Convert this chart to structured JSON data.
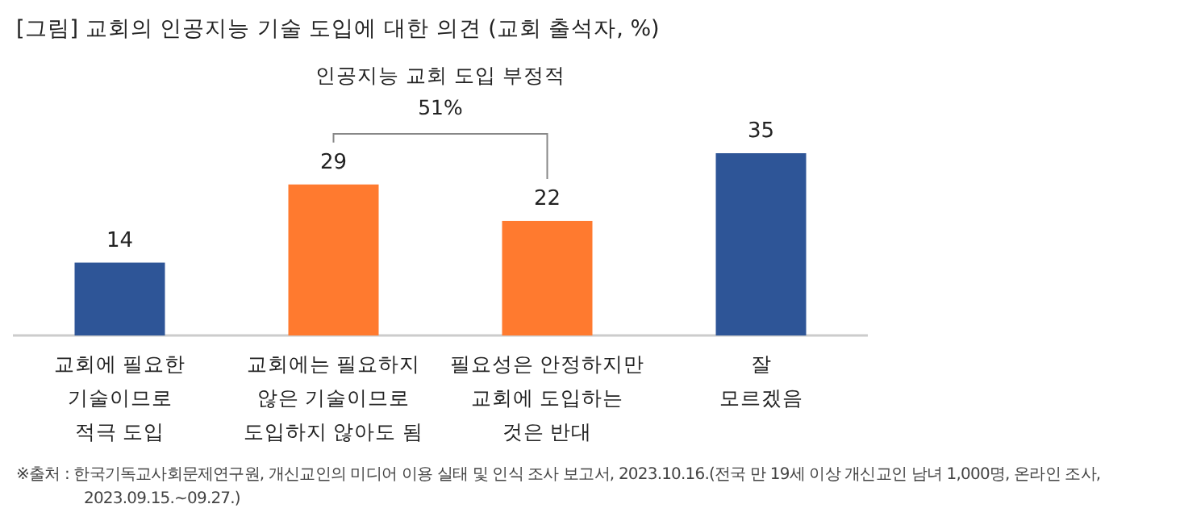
{
  "chart_data": {
    "type": "bar",
    "title": "[그림] 교회의 인공지능 기술 도입에 대한 의견 (교회 출석자, %)",
    "categories": [
      "교회에 필요한\n기술이므로\n적극 도입",
      "교회에는 필요하지\n않은 기술이므로\n도입하지 않아도 됨",
      "필요성은 안정하지만\n교회에 도입하는\n것은 반대",
      "잘\n모르겠음"
    ],
    "values": [
      14,
      29,
      22,
      35
    ],
    "colors": [
      "#2e5597",
      "#ff7a2f",
      "#ff7a2f",
      "#2e5597"
    ],
    "data_labels": true,
    "annotations": [
      "인공지능 교회 도입 부정적\n51%",
      "※출처 : 한국기독교사회문제연구원, 개신교인의 미디어 이용 실태 및 인식 조사 보고서, 2023.10.16.(전국 만 19세 이상 개신교인 남녀 1,000명, 온라인 조사,\n2023.09.15.~09.27.)"
    ]
  }
}
